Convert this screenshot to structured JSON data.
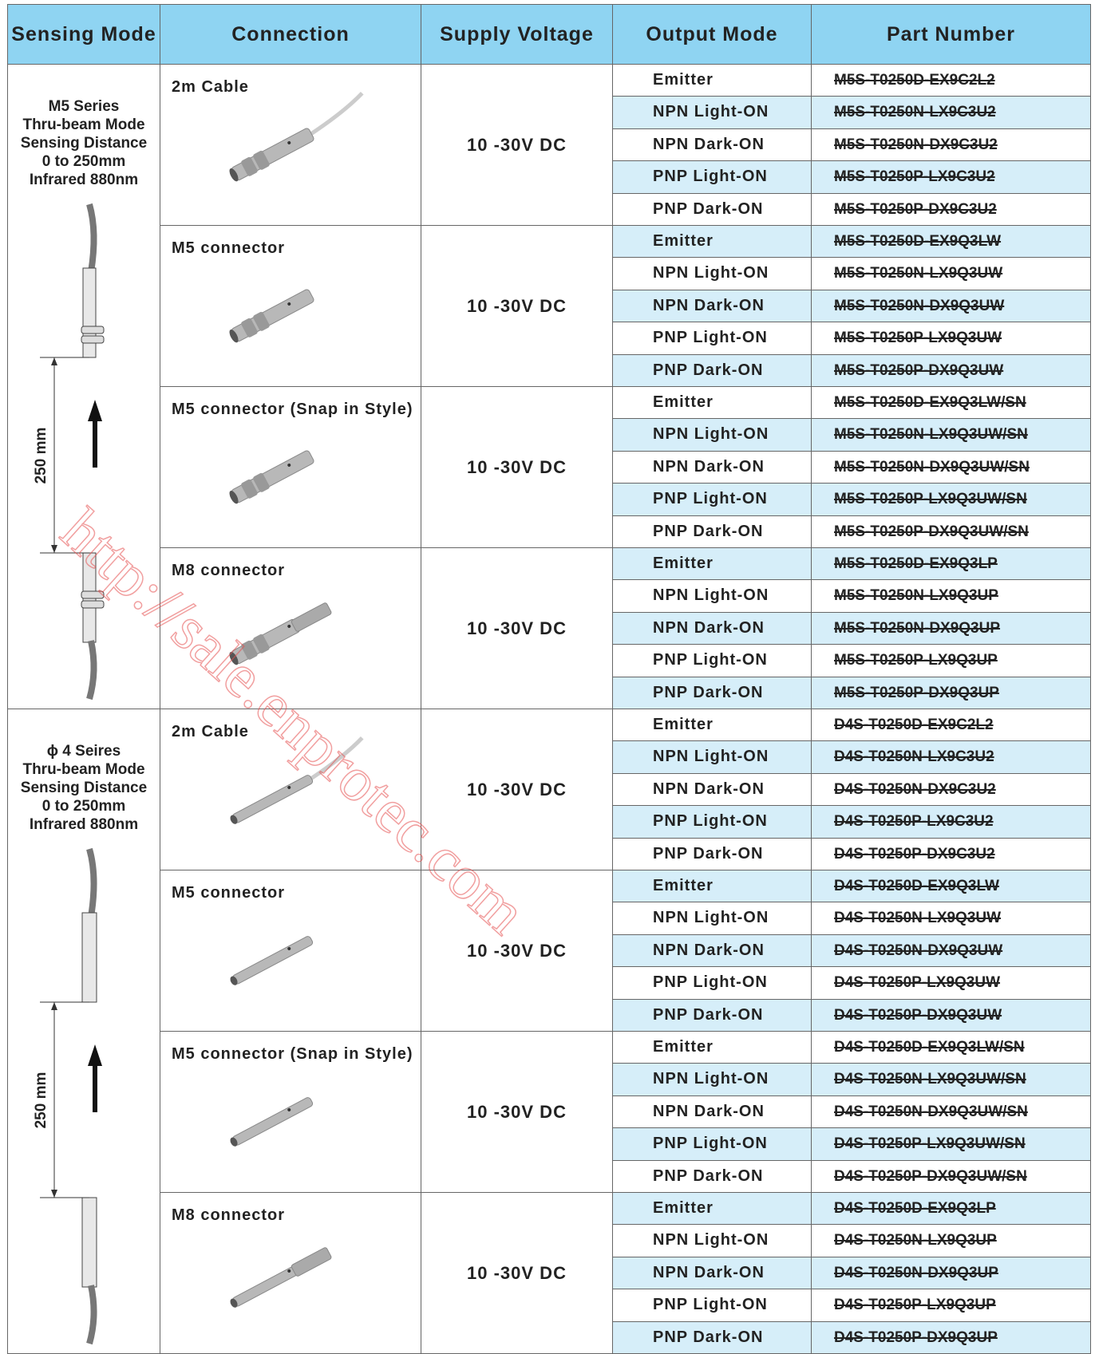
{
  "header": [
    "Sensing Mode",
    "Connection",
    "Supply Voltage",
    "Output Mode",
    "Part Number"
  ],
  "series": [
    {
      "label": [
        "M5 Series",
        "Thru-beam Mode",
        "Sensing Distance",
        "0 to 250mm",
        "Infrared 880nm"
      ],
      "distance": "250 mm",
      "groups": [
        {
          "connection": "2m Cable",
          "voltage": "10 -30V DC",
          "rows": [
            [
              "Emitter",
              "M5S-T0250D-EX9C2L2"
            ],
            [
              "NPN Light-ON",
              "M5S-T0250N-LX9C3U2"
            ],
            [
              "NPN Dark-ON",
              "M5S-T0250N-DX9C3U2"
            ],
            [
              "PNP Light-ON",
              "M5S-T0250P-LX9C3U2"
            ],
            [
              "PNP Dark-ON",
              "M5S-T0250P-DX9C3U2"
            ]
          ]
        },
        {
          "connection": "M5 connector",
          "voltage": "10 -30V DC",
          "rows": [
            [
              "Emitter",
              "M5S-T0250D-EX9Q3LW"
            ],
            [
              "NPN Light-ON",
              "M5S-T0250N-LX9Q3UW"
            ],
            [
              "NPN Dark-ON",
              "M5S-T0250N-DX9Q3UW"
            ],
            [
              "PNP Light-ON",
              "M5S-T0250P-LX9Q3UW"
            ],
            [
              "PNP Dark-ON",
              "M5S-T0250P-DX9Q3UW"
            ]
          ]
        },
        {
          "connection": "M5 connector (Snap in Style)",
          "voltage": "10 -30V DC",
          "rows": [
            [
              "Emitter",
              "M5S-T0250D-EX9Q3LW/SN"
            ],
            [
              "NPN Light-ON",
              "M5S-T0250N-LX9Q3UW/SN"
            ],
            [
              "NPN Dark-ON",
              "M5S-T0250N-DX9Q3UW/SN"
            ],
            [
              "PNP Light-ON",
              "M5S-T0250P-LX9Q3UW/SN"
            ],
            [
              "PNP Dark-ON",
              "M5S-T0250P-DX9Q3UW/SN"
            ]
          ]
        },
        {
          "connection": "M8 connector",
          "voltage": "10 -30V DC",
          "rows": [
            [
              "Emitter",
              "M5S-T0250D-EX9Q3LP"
            ],
            [
              "NPN Light-ON",
              "M5S-T0250N-LX9Q3UP"
            ],
            [
              "NPN Dark-ON",
              "M5S-T0250N-DX9Q3UP"
            ],
            [
              "PNP Light-ON",
              "M5S-T0250P-LX9Q3UP"
            ],
            [
              "PNP Dark-ON",
              "M5S-T0250P-DX9Q3UP"
            ]
          ]
        }
      ]
    },
    {
      "label": [
        "ϕ 4 Seires",
        "Thru-beam Mode",
        "Sensing Distance",
        "0 to 250mm",
        "Infrared 880nm"
      ],
      "distance": "250 mm",
      "groups": [
        {
          "connection": "2m Cable",
          "voltage": "10 -30V DC",
          "rows": [
            [
              "Emitter",
              "D4S-T0250D-EX9C2L2"
            ],
            [
              "NPN Light-ON",
              "D4S-T0250N-LX9C3U2"
            ],
            [
              "NPN Dark-ON",
              "D4S-T0250N-DX9C3U2"
            ],
            [
              "PNP Light-ON",
              "D4S-T0250P-LX9C3U2"
            ],
            [
              "PNP Dark-ON",
              "D4S-T0250P-DX9C3U2"
            ]
          ]
        },
        {
          "connection": "M5 connector",
          "voltage": "10 -30V DC",
          "rows": [
            [
              "Emitter",
              "D4S-T0250D-EX9Q3LW"
            ],
            [
              "NPN Light-ON",
              "D4S-T0250N-LX9Q3UW"
            ],
            [
              "NPN Dark-ON",
              "D4S-T0250N-DX9Q3UW"
            ],
            [
              "PNP Light-ON",
              "D4S-T0250P-LX9Q3UW"
            ],
            [
              "PNP Dark-ON",
              "D4S-T0250P-DX9Q3UW"
            ]
          ]
        },
        {
          "connection": "M5 connector (Snap in Style)",
          "voltage": "10 -30V DC",
          "rows": [
            [
              "Emitter",
              "D4S-T0250D-EX9Q3LW/SN"
            ],
            [
              "NPN Light-ON",
              "D4S-T0250N-LX9Q3UW/SN"
            ],
            [
              "NPN Dark-ON",
              "D4S-T0250N-DX9Q3UW/SN"
            ],
            [
              "PNP Light-ON",
              "D4S-T0250P-LX9Q3UW/SN"
            ],
            [
              "PNP Dark-ON",
              "D4S-T0250P-DX9Q3UW/SN"
            ]
          ]
        },
        {
          "connection": "M8 connector",
          "voltage": "10 -30V DC",
          "rows": [
            [
              "Emitter",
              "D4S-T0250D-EX9Q3LP"
            ],
            [
              "NPN Light-ON",
              "D4S-T0250N-LX9Q3UP"
            ],
            [
              "NPN Dark-ON",
              "D4S-T0250N-DX9Q3UP"
            ],
            [
              "PNP Light-ON",
              "D4S-T0250P-LX9Q3UP"
            ],
            [
              "PNP Dark-ON",
              "D4S-T0250P-DX9Q3UP"
            ]
          ]
        }
      ]
    }
  ],
  "watermark": "http://sale.enprotec.com"
}
